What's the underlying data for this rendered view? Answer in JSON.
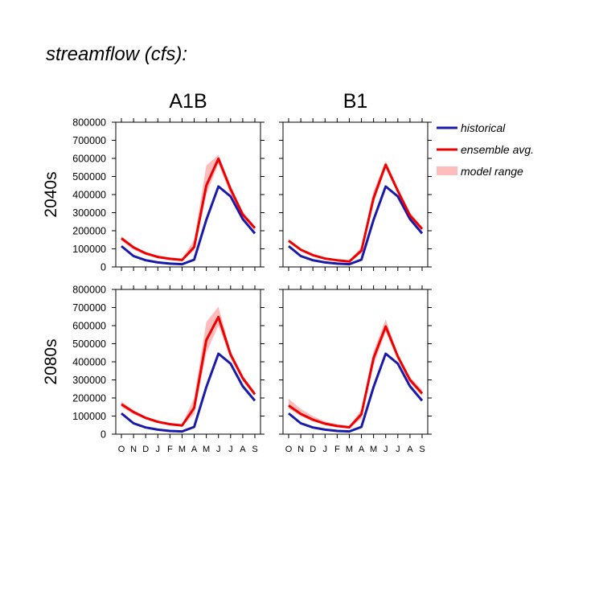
{
  "page": {
    "title": "streamflow (cfs):"
  },
  "chart_data": {
    "type": "line",
    "columns": [
      "A1B",
      "B1"
    ],
    "rows": [
      "2040s",
      "2080s"
    ],
    "x": [
      "O",
      "N",
      "D",
      "J",
      "F",
      "M",
      "A",
      "M",
      "J",
      "J",
      "A",
      "S"
    ],
    "ylim": [
      0,
      800000
    ],
    "yticks": [
      0,
      100000,
      200000,
      300000,
      400000,
      500000,
      600000,
      700000,
      800000
    ],
    "legend": {
      "position": "right",
      "items": [
        {
          "label": "historical",
          "color": "#1a1aaa",
          "kind": "line"
        },
        {
          "label": "ensemble avg.",
          "color": "#ee0000",
          "kind": "line"
        },
        {
          "label": "model range",
          "color": "#ffbcbc",
          "kind": "band"
        }
      ]
    },
    "panels": [
      {
        "row": "2040s",
        "column": "A1B",
        "historical": [
          115000,
          60000,
          37000,
          25000,
          18000,
          15000,
          40000,
          260000,
          445000,
          390000,
          265000,
          185000
        ],
        "ensemble_avg": [
          158000,
          108000,
          75000,
          55000,
          45000,
          38000,
          110000,
          450000,
          598000,
          430000,
          290000,
          215000
        ],
        "range_min": [
          145000,
          95000,
          66000,
          48000,
          38000,
          33000,
          90000,
          400000,
          570000,
          400000,
          275000,
          200000
        ],
        "range_max": [
          170000,
          115000,
          82000,
          62000,
          52000,
          48000,
          150000,
          560000,
          620000,
          450000,
          305000,
          225000
        ]
      },
      {
        "row": "2040s",
        "column": "B1",
        "historical": [
          115000,
          60000,
          37000,
          25000,
          18000,
          15000,
          40000,
          260000,
          445000,
          390000,
          265000,
          185000
        ],
        "ensemble_avg": [
          145000,
          95000,
          65000,
          46000,
          37000,
          30000,
          90000,
          380000,
          565000,
          420000,
          285000,
          210000
        ],
        "range_min": [
          135000,
          87000,
          58000,
          42000,
          33000,
          26000,
          75000,
          350000,
          545000,
          405000,
          275000,
          200000
        ],
        "range_max": [
          155000,
          102000,
          72000,
          52000,
          42000,
          36000,
          110000,
          420000,
          585000,
          440000,
          300000,
          222000
        ]
      },
      {
        "row": "2080s",
        "column": "A1B",
        "historical": [
          115000,
          60000,
          37000,
          25000,
          18000,
          15000,
          40000,
          260000,
          445000,
          390000,
          265000,
          185000
        ],
        "ensemble_avg": [
          165000,
          122000,
          90000,
          68000,
          55000,
          48000,
          145000,
          520000,
          648000,
          440000,
          310000,
          220000
        ],
        "range_min": [
          150000,
          110000,
          82000,
          62000,
          50000,
          44000,
          110000,
          450000,
          600000,
          420000,
          295000,
          210000
        ],
        "range_max": [
          182000,
          132000,
          98000,
          76000,
          62000,
          55000,
          200000,
          620000,
          705000,
          460000,
          325000,
          235000
        ]
      },
      {
        "row": "2080s",
        "column": "B1",
        "historical": [
          115000,
          60000,
          37000,
          25000,
          18000,
          15000,
          40000,
          260000,
          445000,
          390000,
          265000,
          185000
        ],
        "ensemble_avg": [
          158000,
          112000,
          80000,
          58000,
          45000,
          38000,
          110000,
          420000,
          595000,
          430000,
          300000,
          225000
        ],
        "range_min": [
          142000,
          100000,
          70000,
          50000,
          40000,
          33000,
          85000,
          380000,
          565000,
          410000,
          285000,
          210000
        ],
        "range_max": [
          195000,
          140000,
          100000,
          70000,
          55000,
          46000,
          135000,
          460000,
          635000,
          445000,
          315000,
          245000
        ]
      }
    ]
  }
}
